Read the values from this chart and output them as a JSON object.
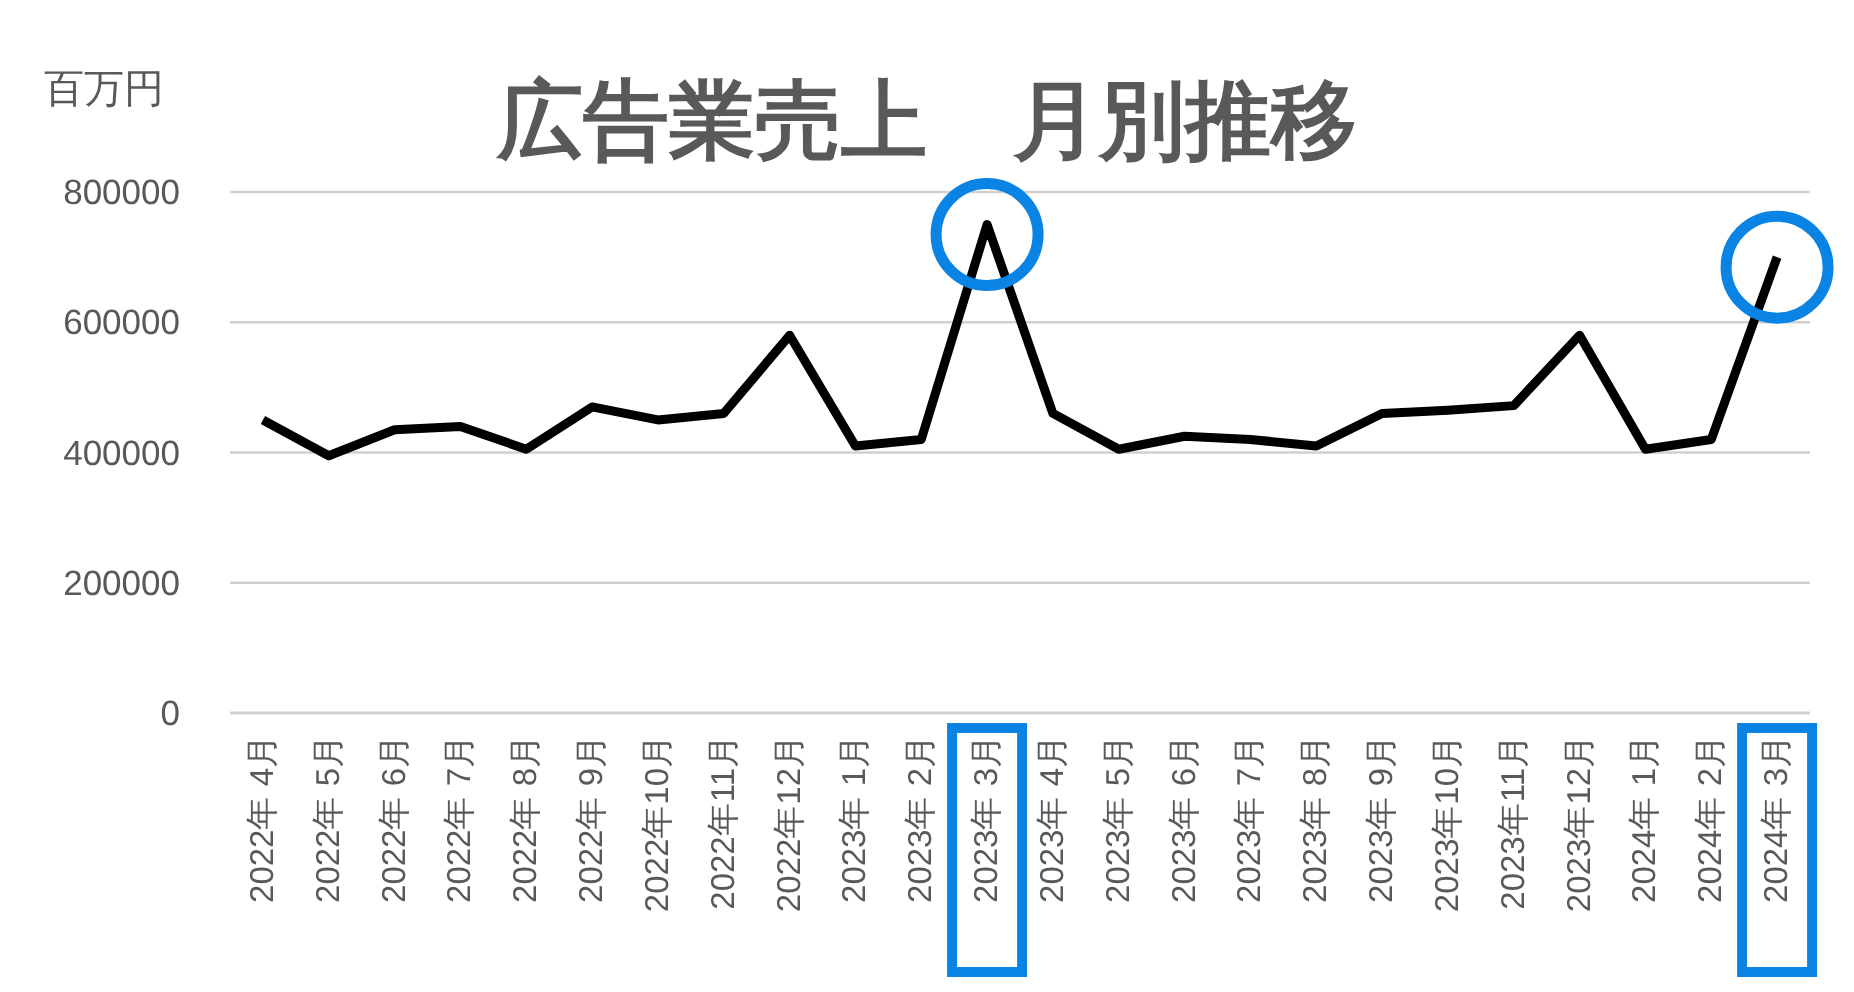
{
  "chart_data": {
    "type": "line",
    "title": "広告業売上　月別推移",
    "ylabel": "百万円",
    "categories": [
      "2022年 4月",
      "2022年 5月",
      "2022年 6月",
      "2022年 7月",
      "2022年 8月",
      "2022年 9月",
      "2022年10月",
      "2022年11月",
      "2022年12月",
      "2023年 1月",
      "2023年 2月",
      "2023年 3月",
      "2023年 4月",
      "2023年 5月",
      "2023年 6月",
      "2023年 7月",
      "2023年 8月",
      "2023年 9月",
      "2023年10月",
      "2023年11月",
      "2023年12月",
      "2024年 1月",
      "2024年 2月",
      "2024年 3月"
    ],
    "series": [
      {
        "color": "#000000",
        "values": [
          450000,
          395000,
          435000,
          440000,
          405000,
          470000,
          450000,
          460000,
          580000,
          410000,
          420000,
          750000,
          460000,
          405000,
          425000,
          420000,
          410000,
          460000,
          465000,
          472000,
          580000,
          405000,
          420000,
          700000
        ]
      }
    ],
    "ylim": [
      0,
      800000
    ],
    "yticks": [
      0,
      200000,
      400000,
      600000,
      800000
    ],
    "grid": "y",
    "marker": "none",
    "line_style": "solid"
  }
}
